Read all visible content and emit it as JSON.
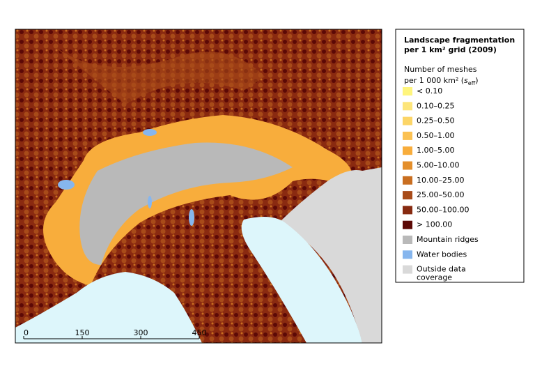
{
  "legend": {
    "title": [
      "Landscape fragmentation",
      "per 1 km² grid (2009)"
    ],
    "subtitle": {
      "line1": "Number of meshes",
      "line2": "per 1 000 km² (",
      "symbol": "s",
      "subscript": "eff",
      "close": ")"
    },
    "items": [
      {
        "lines": [
          "< 0.10"
        ],
        "color": "#fff57d"
      },
      {
        "lines": [
          "0.10–0.25"
        ],
        "color": "#fde57a"
      },
      {
        "lines": [
          "0.25–0.50"
        ],
        "color": "#fcd567"
      },
      {
        "lines": [
          "0.50–1.00"
        ],
        "color": "#fbc152"
      },
      {
        "lines": [
          "1.00–5.00"
        ],
        "color": "#f8ad3c"
      },
      {
        "lines": [
          "5.00–10.00"
        ],
        "color": "#e48f2b"
      },
      {
        "lines": [
          "10.00–25.00"
        ],
        "color": "#c96e20"
      },
      {
        "lines": [
          "25.00–50.00"
        ],
        "color": "#a84b19"
      },
      {
        "lines": [
          "50.00–100.00"
        ],
        "color": "#872a10"
      },
      {
        "lines": [
          "> 100.00"
        ],
        "color": "#5c0906"
      },
      {
        "lines": [
          "Mountain ridges"
        ],
        "color": "#b9b9b9"
      },
      {
        "lines": [
          "Water bodies"
        ],
        "color": "#86b6ee"
      },
      {
        "lines": [
          "Outside data",
          "coverage"
        ],
        "color": "#d9d9d9"
      }
    ]
  },
  "scale_bar": {
    "labels": [
      "0",
      "150",
      "300",
      "450"
    ]
  }
}
